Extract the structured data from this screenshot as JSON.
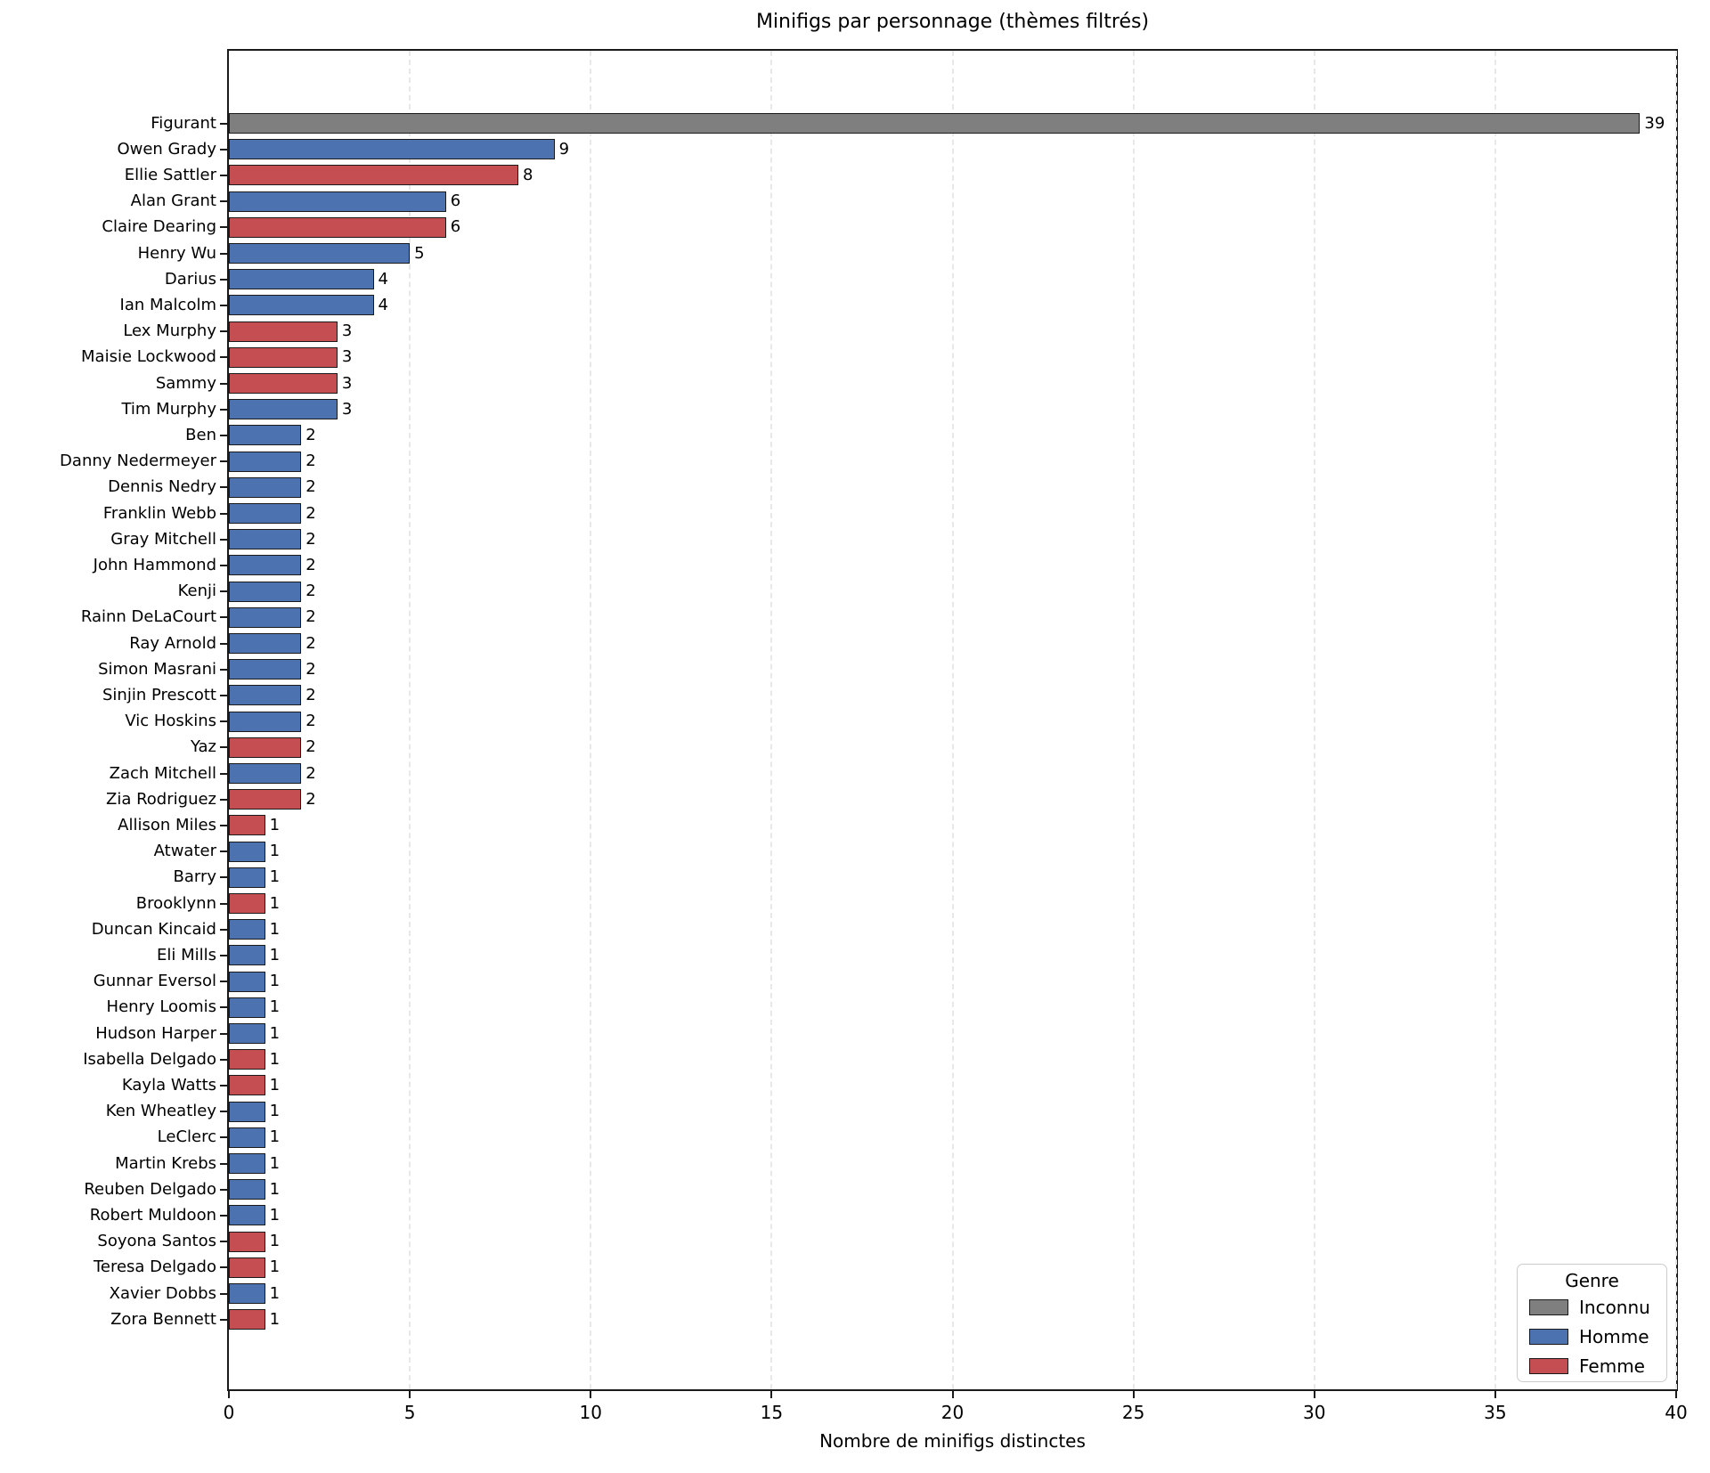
{
  "figure": {
    "title": "Minifigs par personnage (thèmes filtrés)",
    "xlabel": "Nombre de minifigs distinctes"
  },
  "legend": {
    "title": "Genre",
    "entries": [
      {
        "label": "Inconnu",
        "color": "#7f7f7f"
      },
      {
        "label": "Homme",
        "color": "#4c72b0"
      },
      {
        "label": "Femme",
        "color": "#c44e52"
      }
    ]
  },
  "chart_data": {
    "type": "bar",
    "orientation": "horizontal",
    "title": "Minifigs par personnage (thèmes filtrés)",
    "xlabel": "Nombre de minifigs distinctes",
    "ylabel": "",
    "xlim": [
      0,
      40
    ],
    "xticks": [
      0,
      5,
      10,
      15,
      20,
      25,
      30,
      35,
      40
    ],
    "grid": "vertical-dashed",
    "legend_position": "lower right",
    "bar_edge_color": "#1a1a1a",
    "colors": {
      "Inconnu": "#7f7f7f",
      "Homme": "#4c72b0",
      "Femme": "#c44e52"
    },
    "categories": [
      "Figurant",
      "Owen Grady",
      "Ellie Sattler",
      "Alan Grant",
      "Claire Dearing",
      "Henry Wu",
      "Darius",
      "Ian Malcolm",
      "Lex Murphy",
      "Maisie Lockwood",
      "Sammy",
      "Tim Murphy",
      "Ben",
      "Danny Nedermeyer",
      "Dennis Nedry",
      "Franklin Webb",
      "Gray Mitchell",
      "John Hammond",
      "Kenji",
      "Rainn DeLaCourt",
      "Ray Arnold",
      "Simon Masrani",
      "Sinjin Prescott",
      "Vic Hoskins",
      "Yaz",
      "Zach Mitchell",
      "Zia Rodriguez",
      "Allison Miles",
      "Atwater",
      "Barry",
      "Brooklynn",
      "Duncan Kincaid",
      "Eli Mills",
      "Gunnar Eversol",
      "Henry Loomis",
      "Hudson Harper",
      "Isabella Delgado",
      "Kayla Watts",
      "Ken Wheatley",
      "LeClerc",
      "Martin Krebs",
      "Reuben Delgado",
      "Robert Muldoon",
      "Soyona Santos",
      "Teresa Delgado",
      "Xavier Dobbs",
      "Zora Bennett"
    ],
    "values": [
      39,
      9,
      8,
      6,
      6,
      5,
      4,
      4,
      3,
      3,
      3,
      3,
      2,
      2,
      2,
      2,
      2,
      2,
      2,
      2,
      2,
      2,
      2,
      2,
      2,
      2,
      2,
      1,
      1,
      1,
      1,
      1,
      1,
      1,
      1,
      1,
      1,
      1,
      1,
      1,
      1,
      1,
      1,
      1,
      1,
      1,
      1
    ],
    "genders": [
      "Inconnu",
      "Homme",
      "Femme",
      "Homme",
      "Femme",
      "Homme",
      "Homme",
      "Homme",
      "Femme",
      "Femme",
      "Femme",
      "Homme",
      "Homme",
      "Homme",
      "Homme",
      "Homme",
      "Homme",
      "Homme",
      "Homme",
      "Homme",
      "Homme",
      "Homme",
      "Homme",
      "Homme",
      "Femme",
      "Homme",
      "Femme",
      "Femme",
      "Homme",
      "Homme",
      "Femme",
      "Homme",
      "Homme",
      "Homme",
      "Homme",
      "Homme",
      "Femme",
      "Femme",
      "Homme",
      "Homme",
      "Homme",
      "Homme",
      "Homme",
      "Femme",
      "Femme",
      "Homme",
      "Femme"
    ]
  }
}
